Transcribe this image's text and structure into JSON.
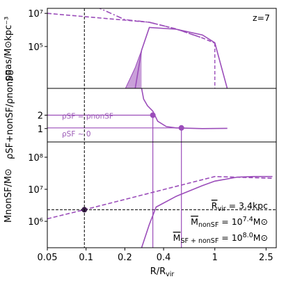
{
  "chart_data": {
    "type": "line",
    "annotation": "z=7",
    "colors": {
      "curve": "#9b4dba",
      "fill": "#c9a0d9",
      "reference": "#000000"
    },
    "xaxis": {
      "label_main": "R/R",
      "label_sub": "vir",
      "scale": "log",
      "lim": [
        0.05,
        3.0
      ],
      "ticks": [
        0.05,
        0.1,
        0.2,
        0.4,
        1,
        2.5
      ],
      "tick_labels": [
        "0.05",
        "0.1",
        "0.2",
        "0.4",
        "1",
        "2.5"
      ]
    },
    "vertical_marker_x": 0.097,
    "panels": [
      {
        "id": "gas_density",
        "ylabel": "ρgas/M⊙kpc⁻³",
        "yscale": "log",
        "ylim": [
          300,
          20000000
        ],
        "ytick_labels": [
          "10⁵",
          "10⁷"
        ],
        "ytick_values": [
          100000,
          10000000
        ],
        "series": [
          {
            "name": "",
            "style": "dashed",
            "x": [
              0.05,
              0.31,
              0.5,
              0.8,
              1.0
            ],
            "y": [
              10000000,
              2900000,
              1150000,
              330000,
              160000
            ]
          },
          {
            "name": "",
            "style": "dashdot",
            "x": [
              0.12,
              0.2,
              0.31,
              0.5,
              0.8
            ],
            "y": [
              25000000,
              4200000,
              2900000,
              1150000,
              330000
            ]
          },
          {
            "name": "",
            "style": "solid",
            "x": [
              0.24,
              0.27,
              0.31,
              0.5,
              0.8,
              1.0,
              1.25
            ],
            "y": [
              250,
              60000,
              1400000,
              1100000,
              500000,
              170000,
              280
            ]
          },
          {
            "name": "",
            "style": "solid-thin",
            "x": [
              0.2,
              0.24,
              0.27,
              0.31
            ],
            "y": [
              250,
              5000,
              60000,
              1400000
            ]
          }
        ],
        "filled_region": {
          "x": [
            0.2,
            0.24,
            0.27
          ],
          "lower": [
            250,
            250,
            250
          ],
          "upper": [
            250,
            5000,
            60000
          ]
        },
        "vertical_dashed_x": 1.0
      },
      {
        "id": "density_ratio",
        "ylabel": "ρSF+nonSF/ρnonSF",
        "ylim": [
          0.0,
          4.0
        ],
        "ytick_labels": [
          "1",
          "2"
        ],
        "ytick_values": [
          1,
          2
        ],
        "series": [
          {
            "name": "",
            "style": "solid",
            "x": [
              0.27,
              0.28,
              0.3,
              0.33,
              0.36,
              0.42,
              0.5,
              0.8,
              1.25
            ],
            "y": [
              4.0,
              3.2,
              2.7,
              2.3,
              1.55,
              1.15,
              1.05,
              1.0,
              1.02
            ]
          }
        ],
        "markers": [
          {
            "x": 0.33,
            "y": 2.0,
            "label": "ρSF = ρnonSF"
          },
          {
            "x": 0.55,
            "y": 1.05,
            "label": "ρSF ~ 0"
          }
        ]
      },
      {
        "id": "enclosed_mass",
        "ylabel": "MnonSF/M⊙",
        "yscale": "log",
        "ylim": [
          150000,
          300000000
        ],
        "ytick_labels": [
          "10⁶",
          "10⁷",
          "10⁸"
        ],
        "ytick_values": [
          1000000,
          10000000,
          100000000
        ],
        "series": [
          {
            "name": "",
            "style": "dashed",
            "x": [
              0.05,
              0.097,
              1.0,
              2.8
            ],
            "y": [
              1200000,
              2300000,
              25000000,
              22000000
            ]
          },
          {
            "name": "",
            "style": "solid",
            "x": [
              0.27,
              0.31,
              0.35,
              0.5,
              0.8,
              1.0,
              1.5,
              2.0,
              2.8
            ],
            "y": [
              150000,
              800000,
              2800000,
              6000000,
              13000000,
              18000000,
              24000000,
              25000000,
              25000000
            ]
          }
        ],
        "horizontal_dashed_y": 2300000,
        "point": {
          "x": 0.097,
          "y": 2300000
        },
        "drop_lines_x": [
          0.33,
          0.55
        ],
        "annotations": [
          {
            "prefix": "R",
            "sub": "vir",
            "rest": " = 3.4kpc"
          },
          {
            "prefix": "M",
            "sub": "nonSF",
            "rest": " = 10",
            "sup": "7.4",
            "unit": "M⊙"
          },
          {
            "prefix": "M",
            "sub": "SF + nonSF",
            "rest": " = 10",
            "sup": "8.0",
            "unit": "M⊙"
          }
        ]
      }
    ]
  }
}
